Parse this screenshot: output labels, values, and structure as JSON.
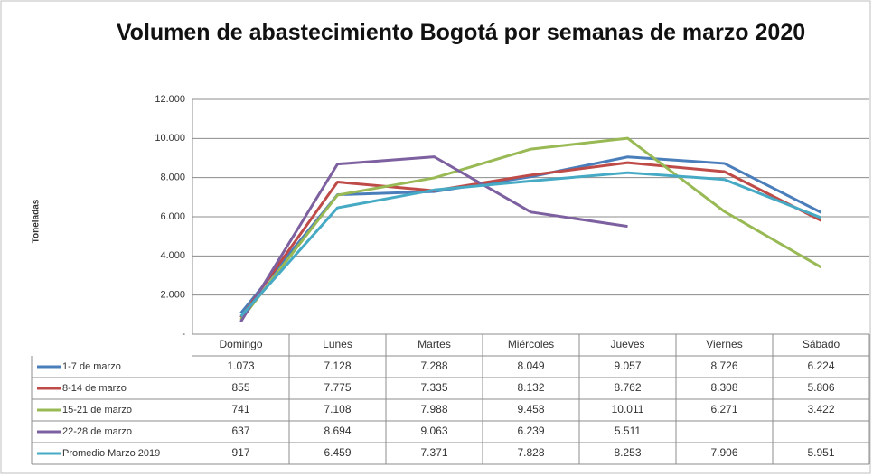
{
  "chart_data": {
    "type": "line",
    "title": "Volumen de abastecimiento Bogotá por semanas de marzo 2020",
    "ylabel": "Toneladas",
    "categories": [
      "Domingo",
      "Lunes",
      "Martes",
      "Miércoles",
      "Jueves",
      "Viernes",
      "Sábado"
    ],
    "series": [
      {
        "name": "1-7 de marzo",
        "color": "#4a7ebb",
        "values": [
          1073,
          7128,
          7288,
          8049,
          9057,
          8726,
          6224
        ],
        "value_labels": [
          "1.073",
          "7.128",
          "7.288",
          "8.049",
          "9.057",
          "8.726",
          "6.224"
        ]
      },
      {
        "name": "8-14 de marzo",
        "color": "#be4b48",
        "values": [
          855,
          7775,
          7335,
          8132,
          8762,
          8308,
          5806
        ],
        "value_labels": [
          "855",
          "7.775",
          "7.335",
          "8.132",
          "8.762",
          "8.308",
          "5.806"
        ]
      },
      {
        "name": "15-21 de marzo",
        "color": "#98b954",
        "values": [
          741,
          7108,
          7988,
          9458,
          10011,
          6271,
          3422
        ],
        "value_labels": [
          "741",
          "7.108",
          "7.988",
          "9.458",
          "10.011",
          "6.271",
          "3.422"
        ]
      },
      {
        "name": "22-28 de marzo",
        "color": "#7d60a0",
        "values": [
          637,
          8694,
          9063,
          6239,
          5511,
          null,
          null
        ],
        "value_labels": [
          "637",
          "8.694",
          "9.063",
          "6.239",
          "5.511",
          null,
          null
        ]
      },
      {
        "name": "Promedio Marzo 2019",
        "color": "#46aac5",
        "values": [
          917,
          6459,
          7371,
          7828,
          8253,
          7906,
          5951
        ],
        "value_labels": [
          "917",
          "6.459",
          "7.371",
          "7.828",
          "8.253",
          "7.906",
          "5.951"
        ]
      }
    ],
    "ylim": [
      0,
      12000
    ],
    "yticks": [
      {
        "value": 0,
        "label": "-"
      },
      {
        "value": 2000,
        "label": "2.000"
      },
      {
        "value": 4000,
        "label": "4.000"
      },
      {
        "value": 6000,
        "label": "6.000"
      },
      {
        "value": 8000,
        "label": "8.000"
      },
      {
        "value": 10000,
        "label": "10.000"
      },
      {
        "value": 12000,
        "label": "12.000"
      }
    ],
    "grid": true
  }
}
